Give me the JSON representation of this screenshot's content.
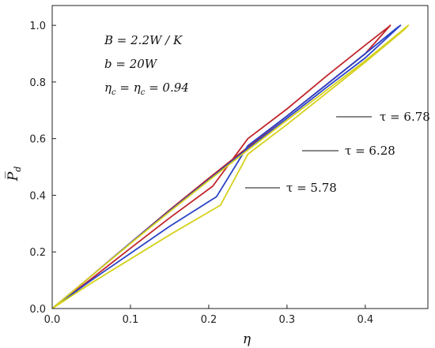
{
  "chart_data": {
    "type": "line",
    "xlabel": "η",
    "ylabel": "P̅",
    "ylabel_sub": "d",
    "xlim": [
      0.0,
      0.48
    ],
    "ylim": [
      0.0,
      1.07
    ],
    "xticks": [
      "0.0",
      "0.1",
      "0.2",
      "0.3",
      "0.4"
    ],
    "yticks": [
      "0.0",
      "0.2",
      "0.4",
      "0.6",
      "0.8",
      "1.0"
    ],
    "parameters": [
      "B = 2.2W / K",
      "b = 20W",
      "η",
      "c",
      " = η",
      "c",
      " = 0.94"
    ],
    "series": [
      {
        "name": "τ = 5.78",
        "color": "#c0262c",
        "x": [
          0.0,
          0.05,
          0.1,
          0.15,
          0.2,
          0.25,
          0.3,
          0.35,
          0.4,
          0.432,
          0.43,
          0.4,
          0.35,
          0.3,
          0.25,
          0.205,
          0.15,
          0.1,
          0.05,
          0.0
        ],
        "y": [
          0.0,
          0.115,
          0.232,
          0.348,
          0.46,
          0.57,
          0.68,
          0.79,
          0.9,
          1.0,
          0.995,
          0.93,
          0.82,
          0.705,
          0.6,
          0.432,
          0.32,
          0.213,
          0.105,
          0.0
        ]
      },
      {
        "name": "τ = 6.28",
        "color": "#2b43c8",
        "x": [
          0.0,
          0.05,
          0.1,
          0.15,
          0.2,
          0.25,
          0.3,
          0.35,
          0.4,
          0.445,
          0.44,
          0.4,
          0.35,
          0.3,
          0.25,
          0.21,
          0.15,
          0.1,
          0.05,
          0.0
        ],
        "y": [
          0.0,
          0.115,
          0.232,
          0.345,
          0.455,
          0.565,
          0.672,
          0.78,
          0.885,
          1.0,
          0.99,
          0.9,
          0.79,
          0.68,
          0.575,
          0.395,
          0.29,
          0.195,
          0.1,
          0.0
        ]
      },
      {
        "name": "τ = 6.78",
        "color": "#d6d11c",
        "x": [
          0.0,
          0.05,
          0.1,
          0.15,
          0.2,
          0.25,
          0.3,
          0.35,
          0.4,
          0.455,
          0.45,
          0.4,
          0.35,
          0.3,
          0.25,
          0.215,
          0.15,
          0.1,
          0.05,
          0.0
        ],
        "y": [
          0.0,
          0.115,
          0.23,
          0.342,
          0.452,
          0.56,
          0.665,
          0.77,
          0.875,
          1.0,
          0.985,
          0.87,
          0.76,
          0.65,
          0.545,
          0.365,
          0.26,
          0.175,
          0.09,
          0.0
        ]
      }
    ],
    "annotations": [
      {
        "text": "τ = 6.78",
        "points_to_series": "τ = 6.78"
      },
      {
        "text": "τ = 6.28",
        "points_to_series": "τ = 6.28"
      },
      {
        "text": "τ = 5.78",
        "points_to_series": "τ = 5.78"
      }
    ],
    "grid": false
  }
}
